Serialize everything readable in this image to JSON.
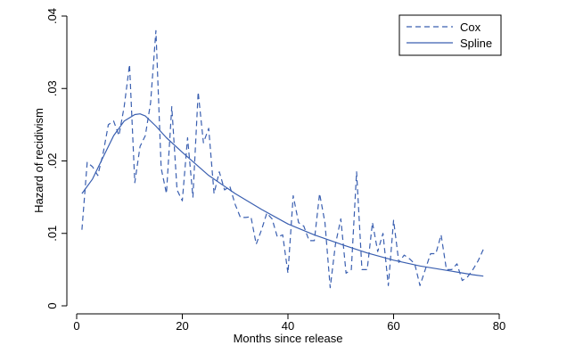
{
  "chart_data": {
    "type": "line",
    "xlabel": "Months since release",
    "ylabel": "Hazard of recidivism",
    "xlim": [
      0,
      80
    ],
    "ylim": [
      0,
      0.04
    ],
    "xticks": [
      {
        "value": 0,
        "label": "0"
      },
      {
        "value": 20,
        "label": "20"
      },
      {
        "value": 40,
        "label": "40"
      },
      {
        "value": 60,
        "label": "60"
      },
      {
        "value": 80,
        "label": "80"
      }
    ],
    "yticks": [
      {
        "value": 0,
        "label": "0"
      },
      {
        "value": 0.01,
        "label": ".01"
      },
      {
        "value": 0.02,
        "label": ".02"
      },
      {
        "value": 0.03,
        "label": ".03"
      },
      {
        "value": 0.04,
        "label": ".04"
      }
    ],
    "grid": false,
    "legend_position": "top-right",
    "series": [
      {
        "name": "Cox",
        "style": "dashed",
        "color": "#3a5fb0",
        "x": [
          1,
          2,
          3,
          4,
          5,
          6,
          7,
          8,
          9,
          10,
          11,
          12,
          13,
          14,
          15,
          16,
          17,
          18,
          19,
          20,
          21,
          22,
          23,
          24,
          25,
          26,
          27,
          28,
          29,
          30,
          31,
          32,
          33,
          34,
          35,
          36,
          37,
          38,
          39,
          40,
          41,
          42,
          43,
          44,
          45,
          46,
          47,
          48,
          49,
          50,
          51,
          52,
          53,
          54,
          55,
          56,
          57,
          58,
          59,
          60,
          61,
          62,
          63,
          64,
          65,
          66,
          67,
          68,
          69,
          70,
          71,
          72,
          73,
          74,
          75,
          76,
          77
        ],
        "y": [
          0.0105,
          0.0198,
          0.0192,
          0.018,
          0.021,
          0.025,
          0.0255,
          0.0235,
          0.0275,
          0.0333,
          0.017,
          0.022,
          0.0235,
          0.028,
          0.038,
          0.019,
          0.0155,
          0.0275,
          0.016,
          0.0145,
          0.0232,
          0.015,
          0.0295,
          0.0225,
          0.0245,
          0.0155,
          0.0185,
          0.016,
          0.0165,
          0.014,
          0.0122,
          0.0122,
          0.0123,
          0.0085,
          0.0105,
          0.0128,
          0.012,
          0.0095,
          0.0098,
          0.0045,
          0.0152,
          0.0115,
          0.011,
          0.009,
          0.009,
          0.0155,
          0.0115,
          0.0025,
          0.0085,
          0.012,
          0.0045,
          0.005,
          0.0185,
          0.005,
          0.005,
          0.0115,
          0.0075,
          0.01,
          0.0028,
          0.0118,
          0.006,
          0.007,
          0.0065,
          0.0058,
          0.0028,
          0.005,
          0.0072,
          0.0072,
          0.0098,
          0.005,
          0.005,
          0.0058,
          0.0035,
          0.004,
          0.005,
          0.0062,
          0.0078
        ]
      },
      {
        "name": "Spline",
        "style": "solid",
        "color": "#3a5fb0",
        "x": [
          1,
          3,
          5,
          7,
          9,
          11,
          12,
          13,
          15,
          17,
          20,
          25,
          30,
          35,
          40,
          45,
          50,
          55,
          60,
          65,
          70,
          75,
          77
        ],
        "y": [
          0.0155,
          0.0175,
          0.0205,
          0.0235,
          0.0255,
          0.0264,
          0.0265,
          0.0262,
          0.0248,
          0.0232,
          0.0212,
          0.018,
          0.0155,
          0.0133,
          0.0113,
          0.0098,
          0.0085,
          0.0073,
          0.0063,
          0.0055,
          0.0049,
          0.0043,
          0.0041
        ]
      }
    ]
  }
}
